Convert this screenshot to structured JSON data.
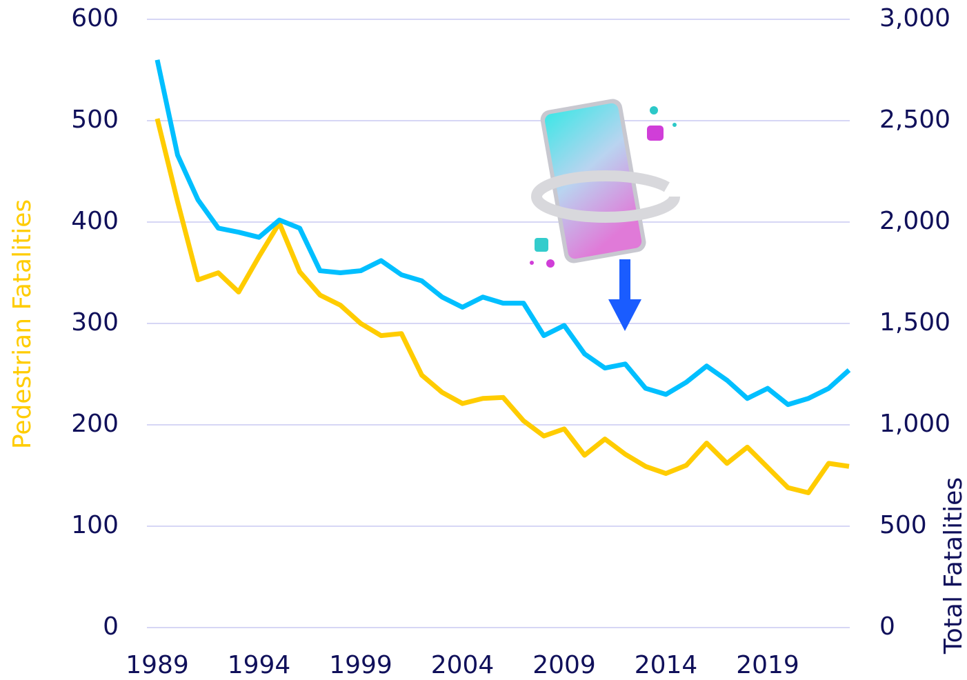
{
  "chart_data": {
    "type": "line",
    "x": [
      1989,
      1990,
      1991,
      1992,
      1993,
      1994,
      1995,
      1996,
      1997,
      1998,
      1999,
      2000,
      2001,
      2002,
      2003,
      2004,
      2005,
      2006,
      2007,
      2008,
      2009,
      2010,
      2011,
      2012,
      2013,
      2014,
      2015,
      2016,
      2017,
      2018,
      2019,
      2020,
      2021,
      2022,
      2023
    ],
    "xlim": [
      1989,
      2023
    ],
    "xticks": [
      1989,
      1994,
      1999,
      2004,
      2009,
      2014,
      2019
    ],
    "ylim": [
      0,
      600
    ],
    "yticks": [
      0,
      100,
      200,
      300,
      400,
      500,
      600
    ],
    "y2lim": [
      0,
      3000
    ],
    "y2ticks": [
      0,
      {
        "value": 500,
        "label": "500"
      },
      {
        "value": 1000,
        "label": "1,000"
      },
      {
        "value": 1500,
        "label": "1,500"
      },
      {
        "value": 2000,
        "label": "2,000"
      },
      {
        "value": 2500,
        "label": "2,500"
      },
      {
        "value": 3000,
        "label": "3,000"
      }
    ],
    "ylabel": "Pedestrian Fatalities",
    "y2label": "Total Fatalities",
    "grid": true,
    "series": [
      {
        "name": "Pedestrian Fatalities",
        "color": "#ffcc00",
        "values": [
          502,
          420,
          343,
          350,
          331,
          366,
          399,
          351,
          328,
          318,
          300,
          288,
          290,
          249,
          232,
          221,
          226,
          227,
          204,
          189,
          196,
          170,
          186,
          171,
          159,
          152,
          160,
          182,
          162,
          178,
          158,
          138,
          133,
          162,
          159
        ]
      },
      {
        "name": "Total Fatalities",
        "color": "#00bfff",
        "axis": "y2",
        "values": [
          2800,
          2330,
          2110,
          1970,
          1950,
          1925,
          2010,
          1970,
          1760,
          1750,
          1760,
          1810,
          1740,
          1710,
          1630,
          1580,
          1630,
          1600,
          1600,
          1440,
          1490,
          1350,
          1280,
          1300,
          1180,
          1150,
          1210,
          1290,
          1220,
          1130,
          1180,
          1100,
          1130,
          1180,
          1270
        ]
      }
    ]
  }
}
